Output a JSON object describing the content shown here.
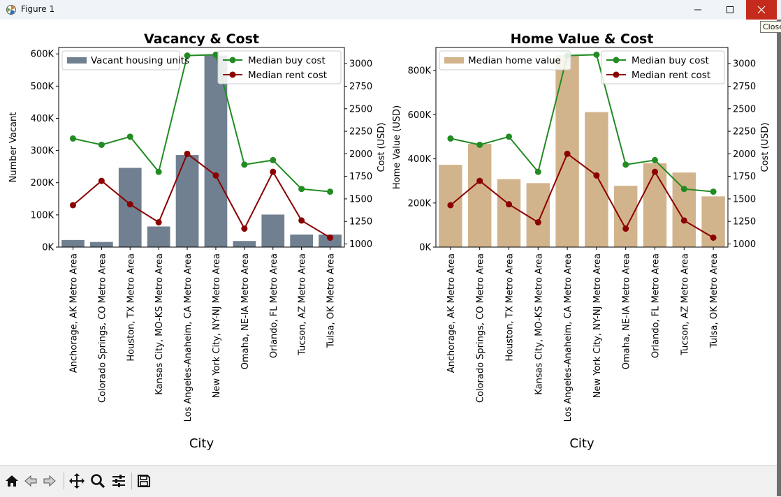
{
  "window": {
    "title": "Figure 1",
    "close_tooltip": "Close"
  },
  "colors": {
    "vacant": "#708090",
    "home_value": "#d2b48c",
    "buy": "#228b22",
    "rent": "#8b0000"
  },
  "chart_data": [
    {
      "type": "bar",
      "title": "Vacancy & Cost",
      "xlabel": "City",
      "ylabel": "Number Vacant",
      "y2label": "Cost (USD)",
      "categories": [
        "Anchorage, AK Metro Area",
        "Colorado Springs, CO Metro Area",
        "Houston, TX Metro Area",
        "Kansas City, MO-KS Metro Area",
        "Los Angeles-Anaheim, CA Metro Area",
        "New York City, NY-NJ Metro Area",
        "Omaha, NE-IA Metro Area",
        "Orlando, FL Metro Area",
        "Tucson, AZ Metro Area",
        "Tulsa, OK Metro Area"
      ],
      "ylim": [
        0,
        620000
      ],
      "yticks": [
        0,
        100000,
        200000,
        300000,
        400000,
        500000,
        600000
      ],
      "ytick_labels": [
        "0K",
        "100K",
        "200K",
        "300K",
        "400K",
        "500K",
        "600K"
      ],
      "y2lim": [
        965,
        3180
      ],
      "y2ticks": [
        1000,
        1250,
        1500,
        1750,
        2000,
        2250,
        2500,
        2750,
        3000
      ],
      "bar_series": {
        "name": "Vacant housing units",
        "values": [
          22000,
          16000,
          246000,
          64000,
          286000,
          595000,
          19000,
          101000,
          39000,
          39000
        ]
      },
      "line_series": [
        {
          "name": "Median buy cost",
          "values": [
            2170,
            2100,
            2190,
            1800,
            3090,
            3100,
            1880,
            1930,
            1610,
            1580
          ]
        },
        {
          "name": "Median rent cost",
          "values": [
            1430,
            1700,
            1440,
            1240,
            2000,
            1760,
            1170,
            1800,
            1260,
            1070
          ]
        }
      ],
      "legend_bar": "upper-left",
      "legend_lines": "upper-right",
      "grid": false
    },
    {
      "type": "bar",
      "title": "Home Value & Cost",
      "xlabel": "City",
      "ylabel": "Home Value (USD)",
      "y2label": "Cost (USD)",
      "categories": [
        "Anchorage, AK Metro Area",
        "Colorado Springs, CO Metro Area",
        "Houston, TX Metro Area",
        "Kansas City, MO-KS Metro Area",
        "Los Angeles-Anaheim, CA Metro Area",
        "New York City, NY-NJ Metro Area",
        "Omaha, NE-IA Metro Area",
        "Orlando, FL Metro Area",
        "Tucson, AZ Metro Area",
        "Tulsa, OK Metro Area"
      ],
      "ylim": [
        0,
        905000
      ],
      "yticks": [
        0,
        200000,
        400000,
        600000,
        800000
      ],
      "ytick_labels": [
        "0K",
        "200K",
        "400K",
        "600K",
        "800K"
      ],
      "y2lim": [
        965,
        3180
      ],
      "y2ticks": [
        1000,
        1250,
        1500,
        1750,
        2000,
        2250,
        2500,
        2750,
        3000
      ],
      "bar_series": {
        "name": "Median home value",
        "values": [
          373000,
          468000,
          308000,
          290000,
          870000,
          612000,
          278000,
          380000,
          338000,
          230000
        ]
      },
      "line_series": [
        {
          "name": "Median buy cost",
          "values": [
            2170,
            2100,
            2190,
            1800,
            3090,
            3100,
            1880,
            1930,
            1610,
            1580
          ]
        },
        {
          "name": "Median rent cost",
          "values": [
            1430,
            1700,
            1440,
            1240,
            2000,
            1760,
            1170,
            1800,
            1260,
            1070
          ]
        }
      ],
      "legend_bar": "upper-left",
      "legend_lines": "upper-right",
      "grid": false
    }
  ]
}
